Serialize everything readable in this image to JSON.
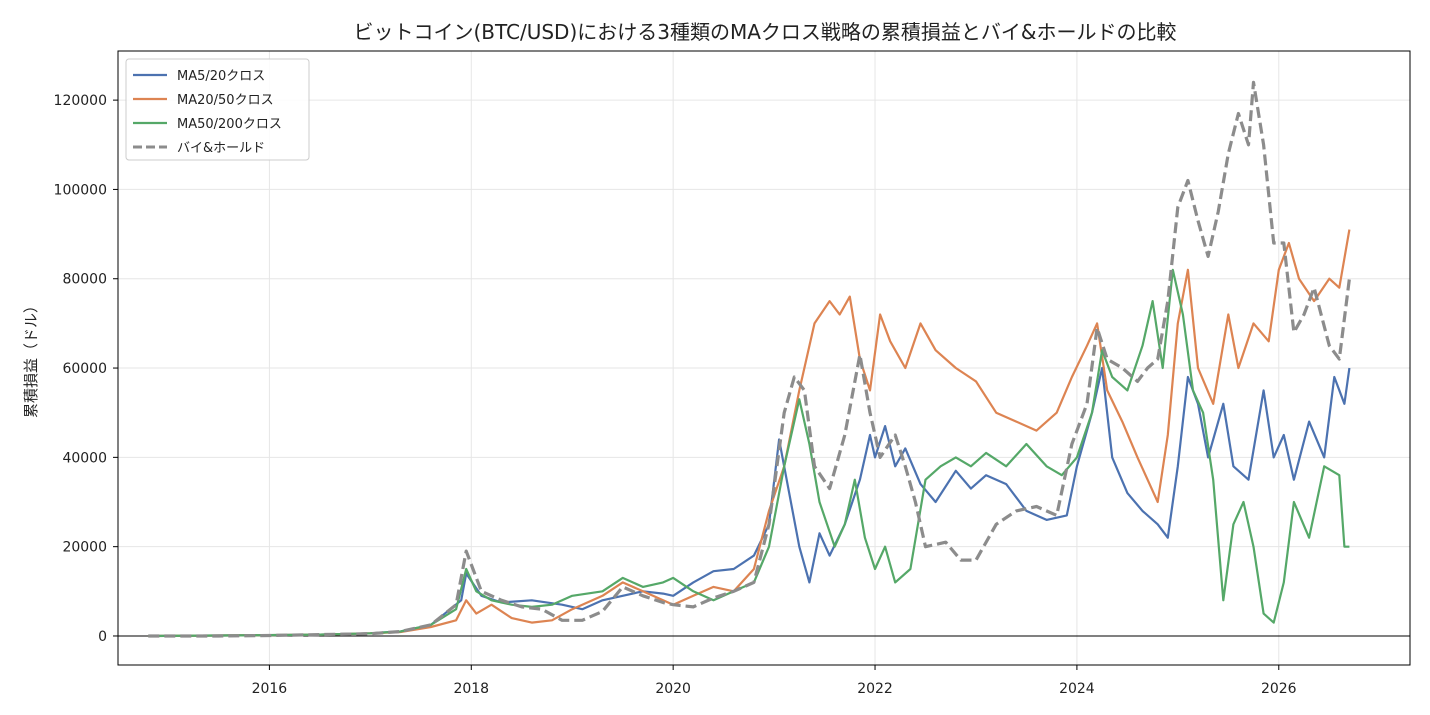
{
  "chart_data": {
    "type": "line",
    "title": "ビットコイン(BTC/USD)における3種類のMAクロス戦略の累積損益とバイ&ホールドの比較",
    "xlabel": "",
    "ylabel": "累積損益（ドル）",
    "xlim": [
      2014.5,
      2027.3
    ],
    "ylim": [
      -6500,
      131000
    ],
    "x_ticks": [
      2016,
      2018,
      2020,
      2022,
      2024,
      2026
    ],
    "y_ticks": [
      0,
      20000,
      40000,
      60000,
      80000,
      100000,
      120000
    ],
    "grid": true,
    "legend_position": "top-left",
    "zero_line": true,
    "series": [
      {
        "name": "MA5/20クロス",
        "color": "#4c72b0",
        "style": "solid",
        "points": [
          [
            2014.8,
            0
          ],
          [
            2015.5,
            100
          ],
          [
            2016.0,
            200
          ],
          [
            2016.5,
            300
          ],
          [
            2017.0,
            600
          ],
          [
            2017.3,
            1000
          ],
          [
            2017.6,
            2500
          ],
          [
            2017.9,
            8000
          ],
          [
            2017.95,
            14000
          ],
          [
            2018.1,
            9000
          ],
          [
            2018.3,
            7500
          ],
          [
            2018.6,
            8000
          ],
          [
            2018.9,
            7000
          ],
          [
            2019.1,
            6000
          ],
          [
            2019.3,
            8000
          ],
          [
            2019.5,
            9000
          ],
          [
            2019.7,
            10000
          ],
          [
            2019.9,
            9500
          ],
          [
            2020.0,
            9000
          ],
          [
            2020.2,
            12000
          ],
          [
            2020.4,
            14500
          ],
          [
            2020.6,
            15000
          ],
          [
            2020.8,
            18000
          ],
          [
            2020.95,
            25000
          ],
          [
            2021.05,
            44000
          ],
          [
            2021.15,
            32000
          ],
          [
            2021.25,
            20000
          ],
          [
            2021.35,
            12000
          ],
          [
            2021.45,
            23000
          ],
          [
            2021.55,
            18000
          ],
          [
            2021.7,
            25000
          ],
          [
            2021.85,
            35000
          ],
          [
            2021.95,
            45000
          ],
          [
            2022.0,
            40000
          ],
          [
            2022.1,
            47000
          ],
          [
            2022.2,
            38000
          ],
          [
            2022.3,
            42000
          ],
          [
            2022.45,
            34000
          ],
          [
            2022.6,
            30000
          ],
          [
            2022.8,
            37000
          ],
          [
            2022.95,
            33000
          ],
          [
            2023.1,
            36000
          ],
          [
            2023.3,
            34000
          ],
          [
            2023.5,
            28000
          ],
          [
            2023.7,
            26000
          ],
          [
            2023.9,
            27000
          ],
          [
            2024.0,
            38000
          ],
          [
            2024.15,
            50000
          ],
          [
            2024.25,
            60000
          ],
          [
            2024.35,
            40000
          ],
          [
            2024.5,
            32000
          ],
          [
            2024.65,
            28000
          ],
          [
            2024.8,
            25000
          ],
          [
            2024.9,
            22000
          ],
          [
            2025.0,
            38000
          ],
          [
            2025.1,
            58000
          ],
          [
            2025.2,
            52000
          ],
          [
            2025.3,
            40000
          ],
          [
            2025.45,
            52000
          ],
          [
            2025.55,
            38000
          ],
          [
            2025.7,
            35000
          ],
          [
            2025.85,
            55000
          ],
          [
            2025.95,
            40000
          ],
          [
            2026.05,
            45000
          ],
          [
            2026.15,
            35000
          ],
          [
            2026.3,
            48000
          ],
          [
            2026.45,
            40000
          ],
          [
            2026.55,
            58000
          ],
          [
            2026.65,
            52000
          ],
          [
            2026.7,
            60000
          ]
        ]
      },
      {
        "name": "MA20/50クロス",
        "color": "#dd8452",
        "style": "solid",
        "points": [
          [
            2014.8,
            0
          ],
          [
            2015.5,
            100
          ],
          [
            2016.0,
            200
          ],
          [
            2016.5,
            300
          ],
          [
            2017.0,
            600
          ],
          [
            2017.3,
            900
          ],
          [
            2017.6,
            2000
          ],
          [
            2017.85,
            3500
          ],
          [
            2017.95,
            8000
          ],
          [
            2018.05,
            5000
          ],
          [
            2018.2,
            7000
          ],
          [
            2018.4,
            4000
          ],
          [
            2018.6,
            3000
          ],
          [
            2018.8,
            3500
          ],
          [
            2019.0,
            6000
          ],
          [
            2019.3,
            9000
          ],
          [
            2019.5,
            12000
          ],
          [
            2019.7,
            10000
          ],
          [
            2019.9,
            8000
          ],
          [
            2020.0,
            7000
          ],
          [
            2020.2,
            9000
          ],
          [
            2020.4,
            11000
          ],
          [
            2020.6,
            10000
          ],
          [
            2020.8,
            15000
          ],
          [
            2020.95,
            28000
          ],
          [
            2021.1,
            38000
          ],
          [
            2021.25,
            55000
          ],
          [
            2021.4,
            70000
          ],
          [
            2021.55,
            75000
          ],
          [
            2021.65,
            72000
          ],
          [
            2021.75,
            76000
          ],
          [
            2021.85,
            62000
          ],
          [
            2021.95,
            55000
          ],
          [
            2022.05,
            72000
          ],
          [
            2022.15,
            66000
          ],
          [
            2022.3,
            60000
          ],
          [
            2022.45,
            70000
          ],
          [
            2022.6,
            64000
          ],
          [
            2022.8,
            60000
          ],
          [
            2023.0,
            57000
          ],
          [
            2023.2,
            50000
          ],
          [
            2023.4,
            48000
          ],
          [
            2023.6,
            46000
          ],
          [
            2023.8,
            50000
          ],
          [
            2023.95,
            58000
          ],
          [
            2024.1,
            65000
          ],
          [
            2024.2,
            70000
          ],
          [
            2024.3,
            55000
          ],
          [
            2024.45,
            48000
          ],
          [
            2024.6,
            40000
          ],
          [
            2024.7,
            35000
          ],
          [
            2024.8,
            30000
          ],
          [
            2024.9,
            45000
          ],
          [
            2025.0,
            70000
          ],
          [
            2025.1,
            82000
          ],
          [
            2025.2,
            60000
          ],
          [
            2025.35,
            52000
          ],
          [
            2025.5,
            72000
          ],
          [
            2025.6,
            60000
          ],
          [
            2025.75,
            70000
          ],
          [
            2025.9,
            66000
          ],
          [
            2026.0,
            82000
          ],
          [
            2026.1,
            88000
          ],
          [
            2026.2,
            80000
          ],
          [
            2026.35,
            75000
          ],
          [
            2026.5,
            80000
          ],
          [
            2026.6,
            78000
          ],
          [
            2026.7,
            91000
          ]
        ]
      },
      {
        "name": "MA50/200クロス",
        "color": "#55a868",
        "style": "solid",
        "points": [
          [
            2014.8,
            0
          ],
          [
            2015.5,
            100
          ],
          [
            2016.0,
            200
          ],
          [
            2016.5,
            300
          ],
          [
            2017.0,
            600
          ],
          [
            2017.3,
            1000
          ],
          [
            2017.6,
            2500
          ],
          [
            2017.85,
            6000
          ],
          [
            2017.95,
            15000
          ],
          [
            2018.05,
            10000
          ],
          [
            2018.2,
            8000
          ],
          [
            2018.4,
            7000
          ],
          [
            2018.6,
            6500
          ],
          [
            2018.8,
            7000
          ],
          [
            2019.0,
            9000
          ],
          [
            2019.3,
            10000
          ],
          [
            2019.5,
            13000
          ],
          [
            2019.7,
            11000
          ],
          [
            2019.9,
            12000
          ],
          [
            2020.0,
            13000
          ],
          [
            2020.2,
            10000
          ],
          [
            2020.4,
            8000
          ],
          [
            2020.6,
            10000
          ],
          [
            2020.8,
            12000
          ],
          [
            2020.95,
            20000
          ],
          [
            2021.1,
            38000
          ],
          [
            2021.25,
            53000
          ],
          [
            2021.35,
            43000
          ],
          [
            2021.45,
            30000
          ],
          [
            2021.6,
            20000
          ],
          [
            2021.7,
            25000
          ],
          [
            2021.8,
            35000
          ],
          [
            2021.9,
            22000
          ],
          [
            2022.0,
            15000
          ],
          [
            2022.1,
            20000
          ],
          [
            2022.2,
            12000
          ],
          [
            2022.35,
            15000
          ],
          [
            2022.5,
            35000
          ],
          [
            2022.65,
            38000
          ],
          [
            2022.8,
            40000
          ],
          [
            2022.95,
            38000
          ],
          [
            2023.1,
            41000
          ],
          [
            2023.3,
            38000
          ],
          [
            2023.5,
            43000
          ],
          [
            2023.7,
            38000
          ],
          [
            2023.85,
            36000
          ],
          [
            2024.0,
            40000
          ],
          [
            2024.15,
            50000
          ],
          [
            2024.25,
            64000
          ],
          [
            2024.35,
            58000
          ],
          [
            2024.5,
            55000
          ],
          [
            2024.65,
            65000
          ],
          [
            2024.75,
            75000
          ],
          [
            2024.85,
            60000
          ],
          [
            2024.95,
            82000
          ],
          [
            2025.05,
            72000
          ],
          [
            2025.15,
            55000
          ],
          [
            2025.25,
            50000
          ],
          [
            2025.35,
            35000
          ],
          [
            2025.45,
            8000
          ],
          [
            2025.55,
            25000
          ],
          [
            2025.65,
            30000
          ],
          [
            2025.75,
            20000
          ],
          [
            2025.85,
            5000
          ],
          [
            2025.95,
            3000
          ],
          [
            2026.05,
            12000
          ],
          [
            2026.15,
            30000
          ],
          [
            2026.3,
            22000
          ],
          [
            2026.45,
            38000
          ],
          [
            2026.6,
            36000
          ],
          [
            2026.65,
            20000
          ],
          [
            2026.7,
            20000
          ]
        ]
      },
      {
        "name": "バイ&ホールド",
        "color": "#8c8c8c",
        "style": "dashed",
        "points": [
          [
            2014.8,
            0
          ],
          [
            2015.5,
            0
          ],
          [
            2016.0,
            100
          ],
          [
            2016.5,
            300
          ],
          [
            2017.0,
            500
          ],
          [
            2017.3,
            1000
          ],
          [
            2017.6,
            2500
          ],
          [
            2017.85,
            7000
          ],
          [
            2017.95,
            19000
          ],
          [
            2018.1,
            10000
          ],
          [
            2018.3,
            8000
          ],
          [
            2018.5,
            6500
          ],
          [
            2018.7,
            6000
          ],
          [
            2018.9,
            3500
          ],
          [
            2019.1,
            3500
          ],
          [
            2019.3,
            5500
          ],
          [
            2019.5,
            11000
          ],
          [
            2019.7,
            9000
          ],
          [
            2019.9,
            7500
          ],
          [
            2020.0,
            7000
          ],
          [
            2020.2,
            6500
          ],
          [
            2020.4,
            8500
          ],
          [
            2020.6,
            10000
          ],
          [
            2020.8,
            12000
          ],
          [
            2020.95,
            25000
          ],
          [
            2021.1,
            50000
          ],
          [
            2021.2,
            58000
          ],
          [
            2021.3,
            55000
          ],
          [
            2021.4,
            38000
          ],
          [
            2021.55,
            33000
          ],
          [
            2021.7,
            45000
          ],
          [
            2021.85,
            63000
          ],
          [
            2021.95,
            50000
          ],
          [
            2022.05,
            40000
          ],
          [
            2022.2,
            45000
          ],
          [
            2022.3,
            38000
          ],
          [
            2022.4,
            30000
          ],
          [
            2022.5,
            20000
          ],
          [
            2022.7,
            21000
          ],
          [
            2022.85,
            17000
          ],
          [
            2023.0,
            17000
          ],
          [
            2023.2,
            25000
          ],
          [
            2023.4,
            28000
          ],
          [
            2023.6,
            29000
          ],
          [
            2023.8,
            27000
          ],
          [
            2023.95,
            43000
          ],
          [
            2024.1,
            52000
          ],
          [
            2024.2,
            69000
          ],
          [
            2024.3,
            62000
          ],
          [
            2024.45,
            60000
          ],
          [
            2024.6,
            57000
          ],
          [
            2024.7,
            60000
          ],
          [
            2024.8,
            62000
          ],
          [
            2024.9,
            75000
          ],
          [
            2025.0,
            96000
          ],
          [
            2025.1,
            102000
          ],
          [
            2025.2,
            93000
          ],
          [
            2025.3,
            85000
          ],
          [
            2025.4,
            95000
          ],
          [
            2025.5,
            108000
          ],
          [
            2025.6,
            117000
          ],
          [
            2025.7,
            110000
          ],
          [
            2025.75,
            124000
          ],
          [
            2025.85,
            110000
          ],
          [
            2025.95,
            88000
          ],
          [
            2026.05,
            88000
          ],
          [
            2026.15,
            68000
          ],
          [
            2026.25,
            72000
          ],
          [
            2026.35,
            78000
          ],
          [
            2026.5,
            65000
          ],
          [
            2026.6,
            62000
          ],
          [
            2026.7,
            80000
          ]
        ]
      }
    ]
  }
}
